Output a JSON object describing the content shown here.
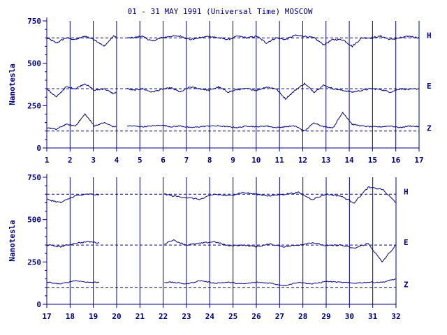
{
  "chart_data": {
    "type": "line",
    "title": "01 - 31 MAY 1991 (Universal Time) MOSCOW",
    "ylabel": "Nanotesla",
    "ylim": [
      0,
      750
    ],
    "y_ticks": [
      "0",
      "250",
      "500",
      "750"
    ],
    "y_tick_values": [
      0,
      250,
      500,
      750
    ],
    "components": [
      "H",
      "E",
      "Z"
    ],
    "baselines": {
      "H": 650,
      "E": 350,
      "Z": 100
    },
    "colors": {
      "trace": "#00007a",
      "axis": "#00007a",
      "text": "#00007a"
    },
    "grid": "vertical day lines; dashed horizontal baselines",
    "panels": [
      {
        "x_range": [
          1,
          17
        ],
        "x_ticks": [
          "1",
          "2",
          "3",
          "4",
          "5",
          "6",
          "7",
          "8",
          "9",
          "10",
          "11",
          "12",
          "13",
          "14",
          "15",
          "16",
          "17"
        ],
        "gaps": [
          [
            3.98,
            4.42
          ]
        ],
        "series": [
          {
            "name": "H",
            "values": [
              650,
              620,
              650,
              640,
              660,
              640,
              600,
              660,
              650,
              650,
              660,
              630,
              650,
              660,
              660,
              640,
              650,
              660,
              650,
              640,
              660,
              650,
              660,
              620,
              650,
              640,
              665,
              660,
              650,
              610,
              640,
              640,
              600,
              650,
              650,
              660,
              640,
              650,
              660,
              650
            ]
          },
          {
            "name": "E",
            "values": [
              350,
              300,
              360,
              350,
              380,
              340,
              350,
              320,
              360,
              340,
              350,
              330,
              345,
              355,
              330,
              360,
              350,
              340,
              360,
              330,
              345,
              350,
              340,
              360,
              350,
              290,
              340,
              380,
              330,
              370,
              350,
              340,
              330,
              340,
              350,
              345,
              330,
              350,
              345,
              350
            ]
          },
          {
            "name": "Z",
            "values": [
              120,
              110,
              140,
              130,
              200,
              130,
              150,
              125,
              130,
              130,
              125,
              130,
              135,
              125,
              130,
              120,
              125,
              130,
              130,
              125,
              120,
              130,
              125,
              130,
              120,
              125,
              130,
              100,
              150,
              125,
              120,
              210,
              140,
              130,
              125,
              125,
              130,
              120,
              130,
              125
            ]
          }
        ]
      },
      {
        "x_range": [
          17,
          32
        ],
        "x_ticks": [
          "17",
          "18",
          "19",
          "20",
          "21",
          "22",
          "23",
          "24",
          "25",
          "26",
          "27",
          "28",
          "29",
          "30",
          "31",
          "32"
        ],
        "gaps": [
          [
            19.3,
            22.0
          ]
        ],
        "series": [
          {
            "name": "H",
            "values": [
              620,
              600,
              640,
              650,
              645,
              640,
              660,
              650,
              660,
              640,
              630,
              620,
              650,
              640,
              660,
              650,
              640,
              650,
              660,
              620,
              650,
              640,
              600,
              690,
              680,
              600
            ]
          },
          {
            "name": "E",
            "values": [
              350,
              340,
              360,
              370,
              360,
              350,
              330,
              360,
              340,
              380,
              350,
              360,
              370,
              345,
              350,
              340,
              355,
              340,
              350,
              365,
              345,
              350,
              330,
              360,
              250,
              350
            ]
          },
          {
            "name": "Z",
            "values": [
              130,
              120,
              140,
              130,
              130,
              125,
              110,
              140,
              130,
              130,
              120,
              140,
              125,
              130,
              120,
              130,
              125,
              110,
              130,
              120,
              135,
              130,
              125,
              130,
              130,
              150
            ]
          }
        ]
      }
    ]
  }
}
